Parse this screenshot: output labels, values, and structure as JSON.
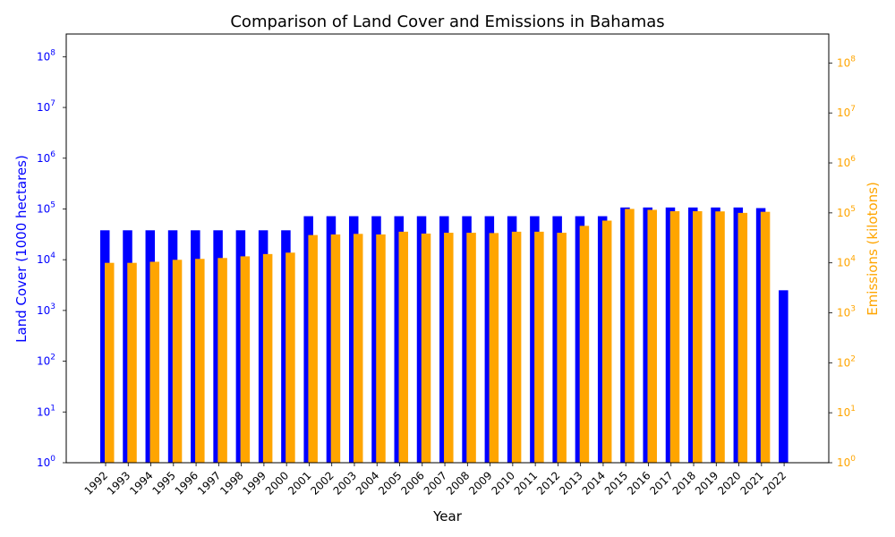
{
  "chart_data": {
    "type": "bar",
    "title": "Comparison of Land Cover and Emissions in Bahamas",
    "xlabel": "Year",
    "ylabel_left": "Land Cover (1000 hectares)",
    "ylabel_right": "Emissions (kilotons)",
    "y_scale": "log",
    "ylim_left": [
      1,
      280000000
    ],
    "ylim_right": [
      1,
      380000000
    ],
    "left_ticks": [
      "10^0",
      "10^1",
      "10^2",
      "10^3",
      "10^4",
      "10^5",
      "10^6",
      "10^7",
      "10^8"
    ],
    "right_ticks": [
      "10^0",
      "10^1",
      "10^2",
      "10^3",
      "10^4",
      "10^5",
      "10^6",
      "10^7",
      "10^8"
    ],
    "colors": {
      "land_cover": "#0000ff",
      "emissions": "#ffa500",
      "axis": "#000000"
    },
    "grid": false,
    "categories": [
      "1992",
      "1993",
      "1994",
      "1995",
      "1996",
      "1997",
      "1998",
      "1999",
      "2000",
      "2001",
      "2002",
      "2003",
      "2004",
      "2005",
      "2006",
      "2007",
      "2008",
      "2009",
      "2010",
      "2011",
      "2012",
      "2013",
      "2014",
      "2015",
      "2016",
      "2017",
      "2018",
      "2019",
      "2020",
      "2021",
      "2022"
    ],
    "series": [
      {
        "name": "Land Cover",
        "axis": "left",
        "values": [
          38000,
          38000,
          38000,
          38000,
          38000,
          38000,
          38000,
          38000,
          38000,
          72000,
          72000,
          72000,
          72000,
          72000,
          72000,
          72000,
          72000,
          72000,
          72000,
          72000,
          72000,
          72000,
          72000,
          107000,
          107000,
          107000,
          107000,
          107000,
          107000,
          104000,
          2500
        ]
      },
      {
        "name": "Emissions",
        "axis": "right",
        "values": [
          10000,
          10000,
          10500,
          11500,
          12000,
          12500,
          13500,
          15000,
          16000,
          36000,
          37000,
          38000,
          37000,
          42000,
          38500,
          40000,
          40000,
          39500,
          42000,
          42000,
          40000,
          55000,
          70000,
          120000,
          115000,
          108000,
          108000,
          107000,
          100000,
          105000,
          null
        ]
      }
    ]
  }
}
